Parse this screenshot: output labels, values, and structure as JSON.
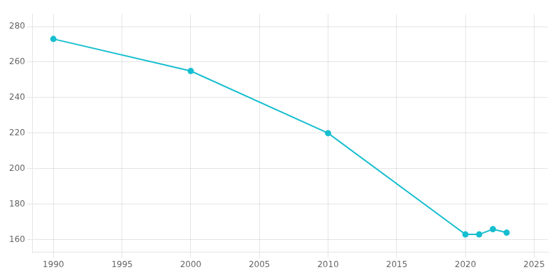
{
  "chart_data": {
    "type": "line",
    "x": [
      1990,
      2000,
      2010,
      2020,
      2021,
      2022,
      2023
    ],
    "values": [
      273,
      255,
      220,
      163,
      163,
      166,
      164
    ],
    "color": "#17becf",
    "marker": "circle",
    "xlim": [
      1988.5,
      2026
    ],
    "ylim": [
      153,
      287
    ],
    "xticks": [
      1990,
      1995,
      2000,
      2005,
      2010,
      2015,
      2020,
      2025
    ],
    "yticks": [
      160,
      180,
      200,
      220,
      240,
      260,
      280
    ],
    "grid": true
  }
}
